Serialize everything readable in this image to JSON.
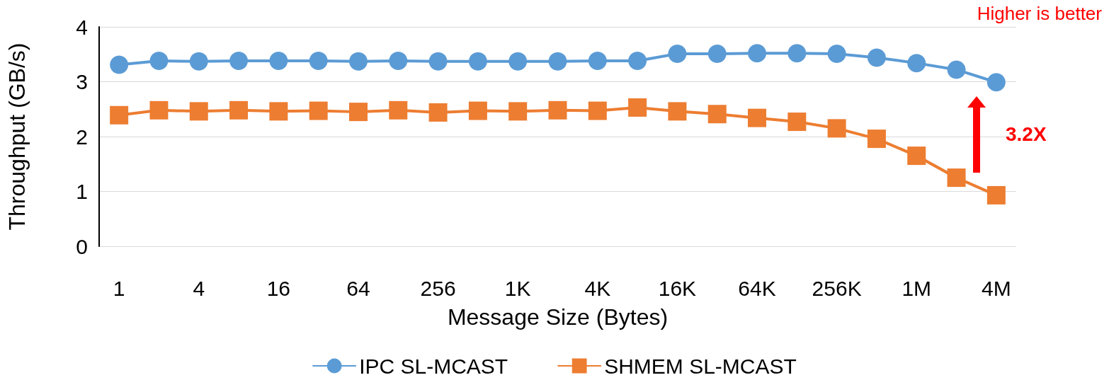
{
  "chart_data": {
    "type": "line",
    "xlabel": "Message Size (Bytes)",
    "ylabel": "Throughput (GB/s)",
    "categories": [
      "1",
      null,
      "4",
      null,
      "16",
      null,
      "64",
      null,
      "256",
      null,
      "1K",
      null,
      "4K",
      null,
      "16K",
      null,
      "64K",
      null,
      "256K",
      null,
      "1M",
      null,
      "4M"
    ],
    "series": [
      {
        "name": "IPC SL-MCAST",
        "color": "#5b9bd5",
        "marker": "circle",
        "values": [
          3.31,
          3.38,
          3.37,
          3.38,
          3.38,
          3.38,
          3.37,
          3.38,
          3.37,
          3.37,
          3.37,
          3.37,
          3.38,
          3.38,
          3.51,
          3.51,
          3.52,
          3.52,
          3.51,
          3.44,
          3.34,
          3.22,
          2.99
        ]
      },
      {
        "name": "SHMEM SL-MCAST",
        "color": "#ed7d31",
        "marker": "square",
        "values": [
          2.39,
          2.48,
          2.46,
          2.48,
          2.46,
          2.47,
          2.45,
          2.48,
          2.44,
          2.47,
          2.46,
          2.48,
          2.47,
          2.53,
          2.46,
          2.41,
          2.34,
          2.27,
          2.15,
          1.96,
          1.65,
          1.25,
          0.93
        ]
      }
    ],
    "ylim": [
      0,
      4
    ],
    "yticks": [
      0,
      1,
      2,
      3,
      4
    ],
    "grid": "y",
    "legend": "bottom",
    "line_style": "solid",
    "annotations": [
      "Higher is better",
      "3.2X"
    ]
  }
}
